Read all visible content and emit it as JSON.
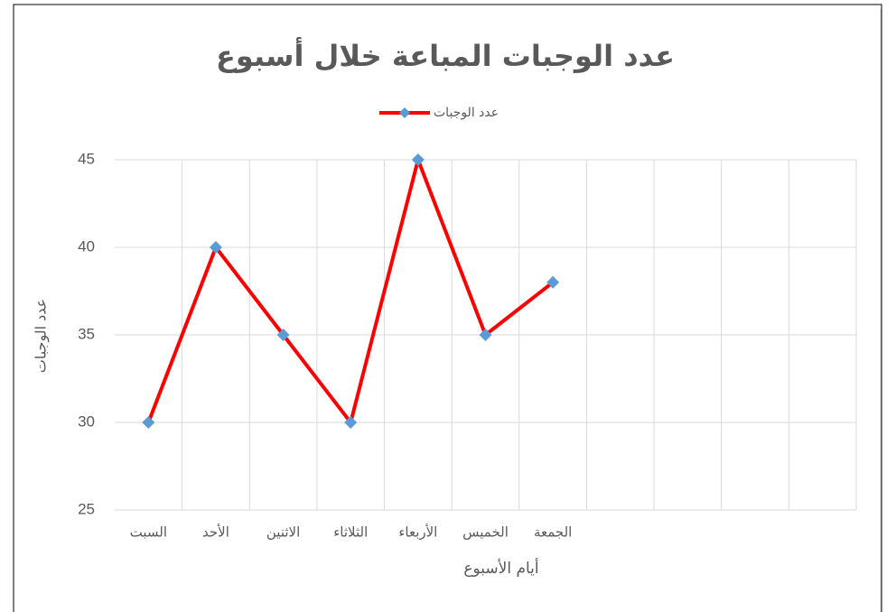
{
  "chart_data": {
    "type": "line",
    "title": "عدد الوجبات المباعة خلال أسبوع",
    "x_label": "أيام الأسبوع",
    "y_label": "عدد الوجبات",
    "categories": [
      "السبت",
      "الأحد",
      "الاثنين",
      "الثلاثاء",
      "الأربعاء",
      "الخميس",
      "الجمعة",
      null,
      null,
      null,
      null
    ],
    "series": [
      {
        "name": "عدد الوجبات",
        "color": "#ff0000",
        "marker_color": "#5b9bd5",
        "values": [
          30,
          40,
          35,
          30,
          45,
          35,
          38,
          null,
          null,
          null,
          null
        ]
      }
    ],
    "ylim": [
      25,
      45
    ],
    "yticks": [
      25,
      30,
      35,
      40,
      45
    ],
    "grid": true,
    "legend": "top"
  }
}
